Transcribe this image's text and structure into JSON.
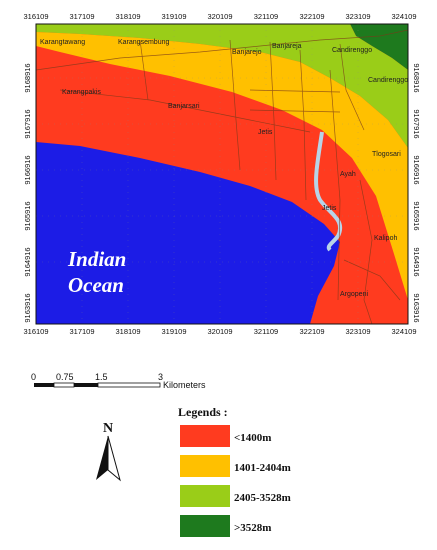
{
  "map": {
    "top_ticks": [
      "316109",
      "317109",
      "318109",
      "319109",
      "320109",
      "321109",
      "322109",
      "323109",
      "324109"
    ],
    "bottom_ticks": [
      "316109",
      "317109",
      "318109",
      "319109",
      "320109",
      "321109",
      "322109",
      "323109",
      "324109"
    ],
    "left_ticks": [
      "9168916",
      "9167916",
      "9166916",
      "9165916",
      "9164916",
      "9163916"
    ],
    "right_ticks": [
      "9168916",
      "9167916",
      "9166916",
      "9165916",
      "9164916",
      "9163916"
    ],
    "places": {
      "karangtawang": "Karangtawang",
      "karangsembung": "Karangsembung",
      "banjarejo": "Banjarejo",
      "banjareja": "Banjareja",
      "candirenggo_top": "Candirenggo",
      "candirenggo_right": "Candirenggo",
      "karangpakis": "Karangpakis",
      "banjarsari": "Banjarsari",
      "jetis_top": "Jetis",
      "tlogosari": "Tlogosari",
      "ayah": "Ayah",
      "jetis_mid": "Jetis",
      "kalipoh": "Kalipoh",
      "argopeni": "Argopeni"
    },
    "ocean_line1": "Indian",
    "ocean_line2": "Ocean"
  },
  "scale_bar": {
    "labels": [
      "0",
      "0.75",
      "1.5",
      "3"
    ],
    "unit": "Kilometers"
  },
  "north_arrow": {
    "label": "N"
  },
  "legend": {
    "title": "Legends :",
    "items": [
      {
        "label": "<1400m",
        "color": "#ff3b1f"
      },
      {
        "label": "1401-2404m",
        "color": "#ffc000"
      },
      {
        "label": "2405-3528m",
        "color": "#9acd18"
      },
      {
        "label": ">3528m",
        "color": "#1e7a1e"
      }
    ]
  },
  "colors": {
    "ocean": "#1c1ce6",
    "zone1": "#ff3b1f",
    "zone2": "#ffc000",
    "zone3": "#9acd18",
    "zone4": "#1e7a1e",
    "river": "#b8d4e8"
  }
}
